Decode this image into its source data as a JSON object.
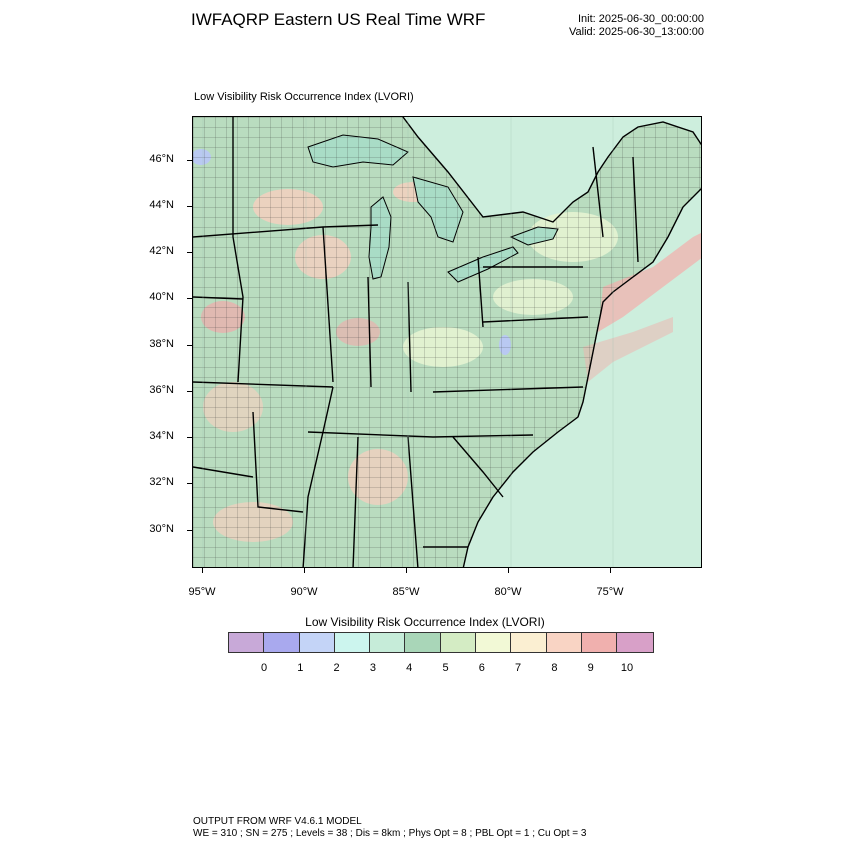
{
  "header": {
    "title": "IWFAQRP Eastern US Real Time WRF",
    "init": "Init: 2025-06-30_00:00:00",
    "valid": "Valid: 2025-06-30_13:00:00"
  },
  "plot": {
    "title": "Low Visibility Risk Occurrence Index   (LVORI)"
  },
  "axes": {
    "lat_labels": [
      "46°N",
      "44°N",
      "42°N",
      "40°N",
      "38°N",
      "36°N",
      "34°N",
      "32°N",
      "30°N"
    ],
    "lon_labels": [
      "95°W",
      "90°W",
      "85°W",
      "80°W",
      "75°W"
    ]
  },
  "colorbar": {
    "title": "Low Visibility Risk Occurrence Index  (LVORI)",
    "labels": [
      "0",
      "1",
      "2",
      "3",
      "4",
      "5",
      "6",
      "7",
      "8",
      "9",
      "10"
    ],
    "colors": [
      "#c8a9d8",
      "#a9a9ee",
      "#c4d4f7",
      "#ccf5ee",
      "#c6ecd9",
      "#a9d6b8",
      "#d4ecc4",
      "#f2f9d6",
      "#fbefd2",
      "#f9d4c4",
      "#f0b0ae",
      "#d8a0c8"
    ]
  },
  "footer": {
    "line1": "OUTPUT FROM WRF V4.6.1 MODEL",
    "line2": "WE = 310 ; SN = 275 ; Levels = 38 ; Dis = 8km ; Phys Opt = 8 ; PBL Opt = 1 ; Cu Opt = 3"
  },
  "map_colors": {
    "ocean": "#cdeedd",
    "land_base": "#b9dcbf",
    "land_warm": "#f1d0bf",
    "land_pink": "#eab0ae",
    "land_pale": "#e6f3d2",
    "water_lake": "#a9dcc6",
    "water_blue": "#b9c9f2",
    "coast_pink": "#f0b2ad"
  }
}
